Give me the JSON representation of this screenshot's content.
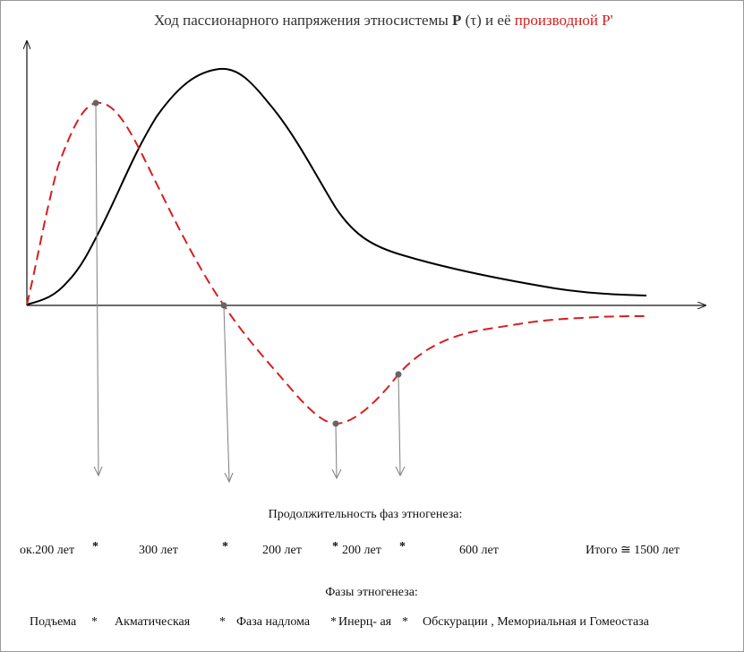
{
  "title": {
    "prefix": "Ход пассионарного напряжения этносистемы",
    "symbol": "P",
    "argument": "(τ) и её",
    "derivative": "производной P'"
  },
  "separator": "*",
  "durations": {
    "heading": "Продолжительность фаз этногенеза:",
    "items": [
      "ок.200 лет",
      "300 лет",
      "200  лет",
      "200 лет",
      "600 лет"
    ],
    "total": "Итого  ≅  1500 лет"
  },
  "phases": {
    "heading": "Фазы этногенеза:",
    "items": [
      "Подъема",
      "Акматическая",
      "Фаза надлома",
      "Инерц- ая",
      "Обскурации , Мемориальная и Гомеостаза"
    ]
  }
}
